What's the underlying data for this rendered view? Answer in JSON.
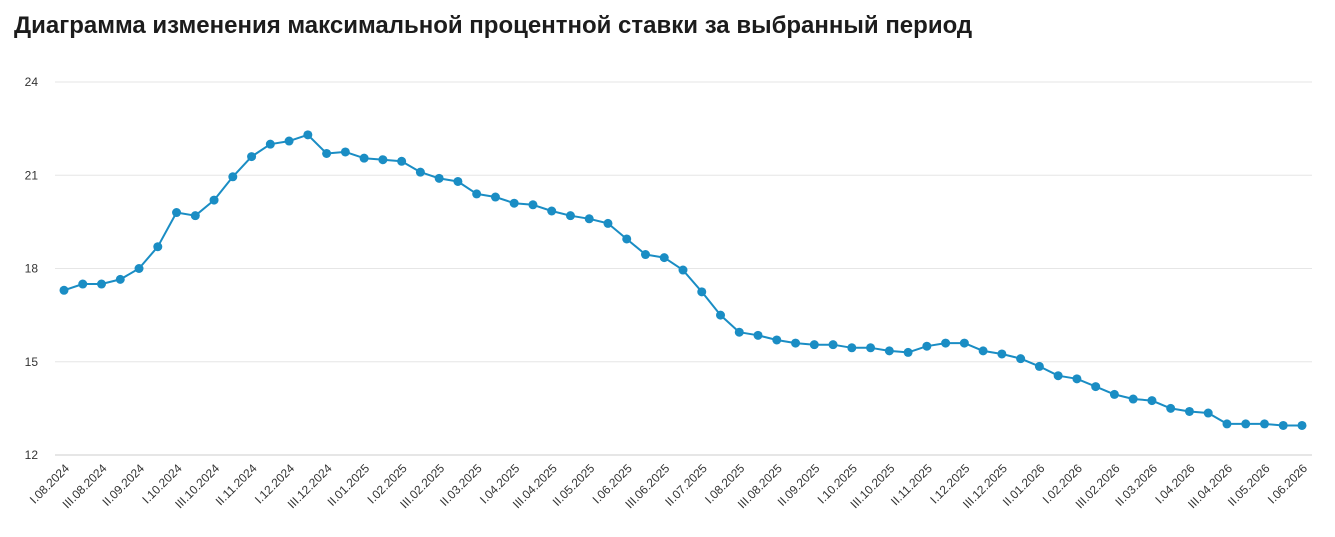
{
  "title": "Диаграмма изменения максимальной процентной ставки за выбранный период",
  "colors": {
    "series": "#1a8dc4",
    "grid": "#e6e6e6",
    "text": "#333333"
  },
  "chart_data": {
    "type": "line",
    "title": "Диаграмма изменения максимальной процентной ставки за выбранный период",
    "xlabel": "",
    "ylabel": "",
    "ylim": [
      12,
      24
    ],
    "yticks": [
      12,
      15,
      18,
      21,
      24
    ],
    "grid": true,
    "legend": "none",
    "x_tick_labels": [
      "I.08.2024",
      "III.08.2024",
      "II.09.2024",
      "I.10.2024",
      "III.10.2024",
      "II.11.2024",
      "I.12.2024",
      "III.12.2024",
      "II.01.2025",
      "I.02.2025",
      "III.02.2025",
      "II.03.2025",
      "I.04.2025",
      "III.04.2025",
      "II.05.2025",
      "I.06.2025",
      "III.06.2025",
      "II.07.2025",
      "I.08.2025",
      "III.08.2025",
      "II.09.2025",
      "I.10.2025",
      "III.10.2025",
      "II.11.2025",
      "I.12.2025",
      "III.12.2025",
      "II.01.2026",
      "I.02.2026",
      "III.02.2026",
      "II.03.2026",
      "I.04.2026",
      "III.04.2026",
      "II.05.2026",
      "I.06.2026"
    ],
    "values": [
      17.3,
      17.5,
      17.5,
      17.65,
      18.0,
      18.7,
      19.8,
      19.7,
      20.2,
      20.95,
      21.6,
      22.0,
      22.1,
      22.3,
      21.7,
      21.75,
      21.55,
      21.5,
      21.45,
      21.1,
      20.9,
      20.8,
      20.4,
      20.3,
      20.1,
      20.05,
      19.85,
      19.7,
      19.6,
      19.45,
      18.95,
      18.45,
      18.35,
      17.95,
      17.25,
      16.5,
      15.95,
      15.85,
      15.7,
      15.6,
      15.55,
      15.55,
      15.45,
      15.45,
      15.35,
      15.3,
      15.5,
      15.6,
      15.6,
      15.35,
      15.25,
      15.1,
      14.85,
      14.55,
      14.45,
      14.2,
      13.95,
      13.8,
      13.75,
      13.5,
      13.4,
      13.35,
      13.0,
      13.0,
      13.0,
      12.95,
      12.95
    ]
  }
}
